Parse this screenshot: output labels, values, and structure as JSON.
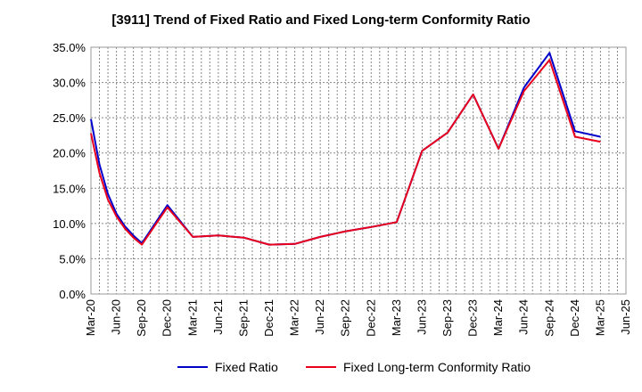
{
  "chart_data": {
    "type": "line",
    "title": "[3911]  Trend of Fixed Ratio and Fixed Long-term Conformity Ratio",
    "xlabel": "",
    "ylabel": "",
    "ylim": [
      0,
      35
    ],
    "y_ticks": [
      "0.0%",
      "5.0%",
      "10.0%",
      "15.0%",
      "20.0%",
      "25.0%",
      "30.0%",
      "35.0%"
    ],
    "x_ticks": [
      "Mar-20",
      "Jun-20",
      "Sep-20",
      "Dec-20",
      "Mar-21",
      "Jun-21",
      "Sep-21",
      "Dec-21",
      "Mar-22",
      "Jun-22",
      "Sep-22",
      "Dec-22",
      "Mar-23",
      "Jun-23",
      "Sep-23",
      "Dec-23",
      "Mar-24",
      "Jun-24",
      "Sep-24",
      "Dec-24",
      "Mar-25",
      "Jun-25"
    ],
    "x_minor_per_major": 3,
    "grid": true,
    "legend_position": "bottom",
    "series": [
      {
        "name": "Fixed Ratio",
        "color": "#0000cc",
        "points": [
          [
            "Mar-20",
            24.8
          ],
          [
            "Apr-20",
            18.4
          ],
          [
            "May-20",
            14.2
          ],
          [
            "Jun-20",
            11.4
          ],
          [
            "Jul-20",
            9.6
          ],
          [
            "Aug-20",
            8.3
          ],
          [
            "Sep-20",
            7.2
          ],
          [
            "Dec-20",
            12.6
          ],
          [
            "Mar-21",
            8.1
          ],
          [
            "Jun-21",
            8.3
          ],
          [
            "Sep-21",
            8.0
          ],
          [
            "Dec-21",
            7.0
          ],
          [
            "Mar-22",
            7.1
          ],
          [
            "Jun-22",
            8.1
          ],
          [
            "Sep-22",
            8.9
          ],
          [
            "Dec-22",
            9.5
          ],
          [
            "Mar-23",
            10.2
          ],
          [
            "Jun-23",
            20.3
          ],
          [
            "Sep-23",
            22.9
          ],
          [
            "Dec-23",
            28.3
          ],
          [
            "Mar-24",
            20.6
          ],
          [
            "Jun-24",
            29.3
          ],
          [
            "Sep-24",
            34.2
          ],
          [
            "Dec-24",
            23.1
          ],
          [
            "Mar-25",
            22.3
          ]
        ]
      },
      {
        "name": "Fixed Long-term Conformity Ratio",
        "color": "#e8001c",
        "points": [
          [
            "Mar-20",
            22.8
          ],
          [
            "Apr-20",
            17.2
          ],
          [
            "May-20",
            13.4
          ],
          [
            "Jun-20",
            11.0
          ],
          [
            "Jul-20",
            9.3
          ],
          [
            "Aug-20",
            8.0
          ],
          [
            "Sep-20",
            7.0
          ],
          [
            "Dec-20",
            12.3
          ],
          [
            "Mar-21",
            8.1
          ],
          [
            "Jun-21",
            8.3
          ],
          [
            "Sep-21",
            8.0
          ],
          [
            "Dec-21",
            7.0
          ],
          [
            "Mar-22",
            7.1
          ],
          [
            "Jun-22",
            8.1
          ],
          [
            "Sep-22",
            8.9
          ],
          [
            "Dec-22",
            9.5
          ],
          [
            "Mar-23",
            10.2
          ],
          [
            "Jun-23",
            20.3
          ],
          [
            "Sep-23",
            22.9
          ],
          [
            "Dec-23",
            28.3
          ],
          [
            "Mar-24",
            20.6
          ],
          [
            "Jun-24",
            28.8
          ],
          [
            "Sep-24",
            33.2
          ],
          [
            "Dec-24",
            22.3
          ],
          [
            "Mar-25",
            21.6
          ]
        ]
      }
    ]
  }
}
